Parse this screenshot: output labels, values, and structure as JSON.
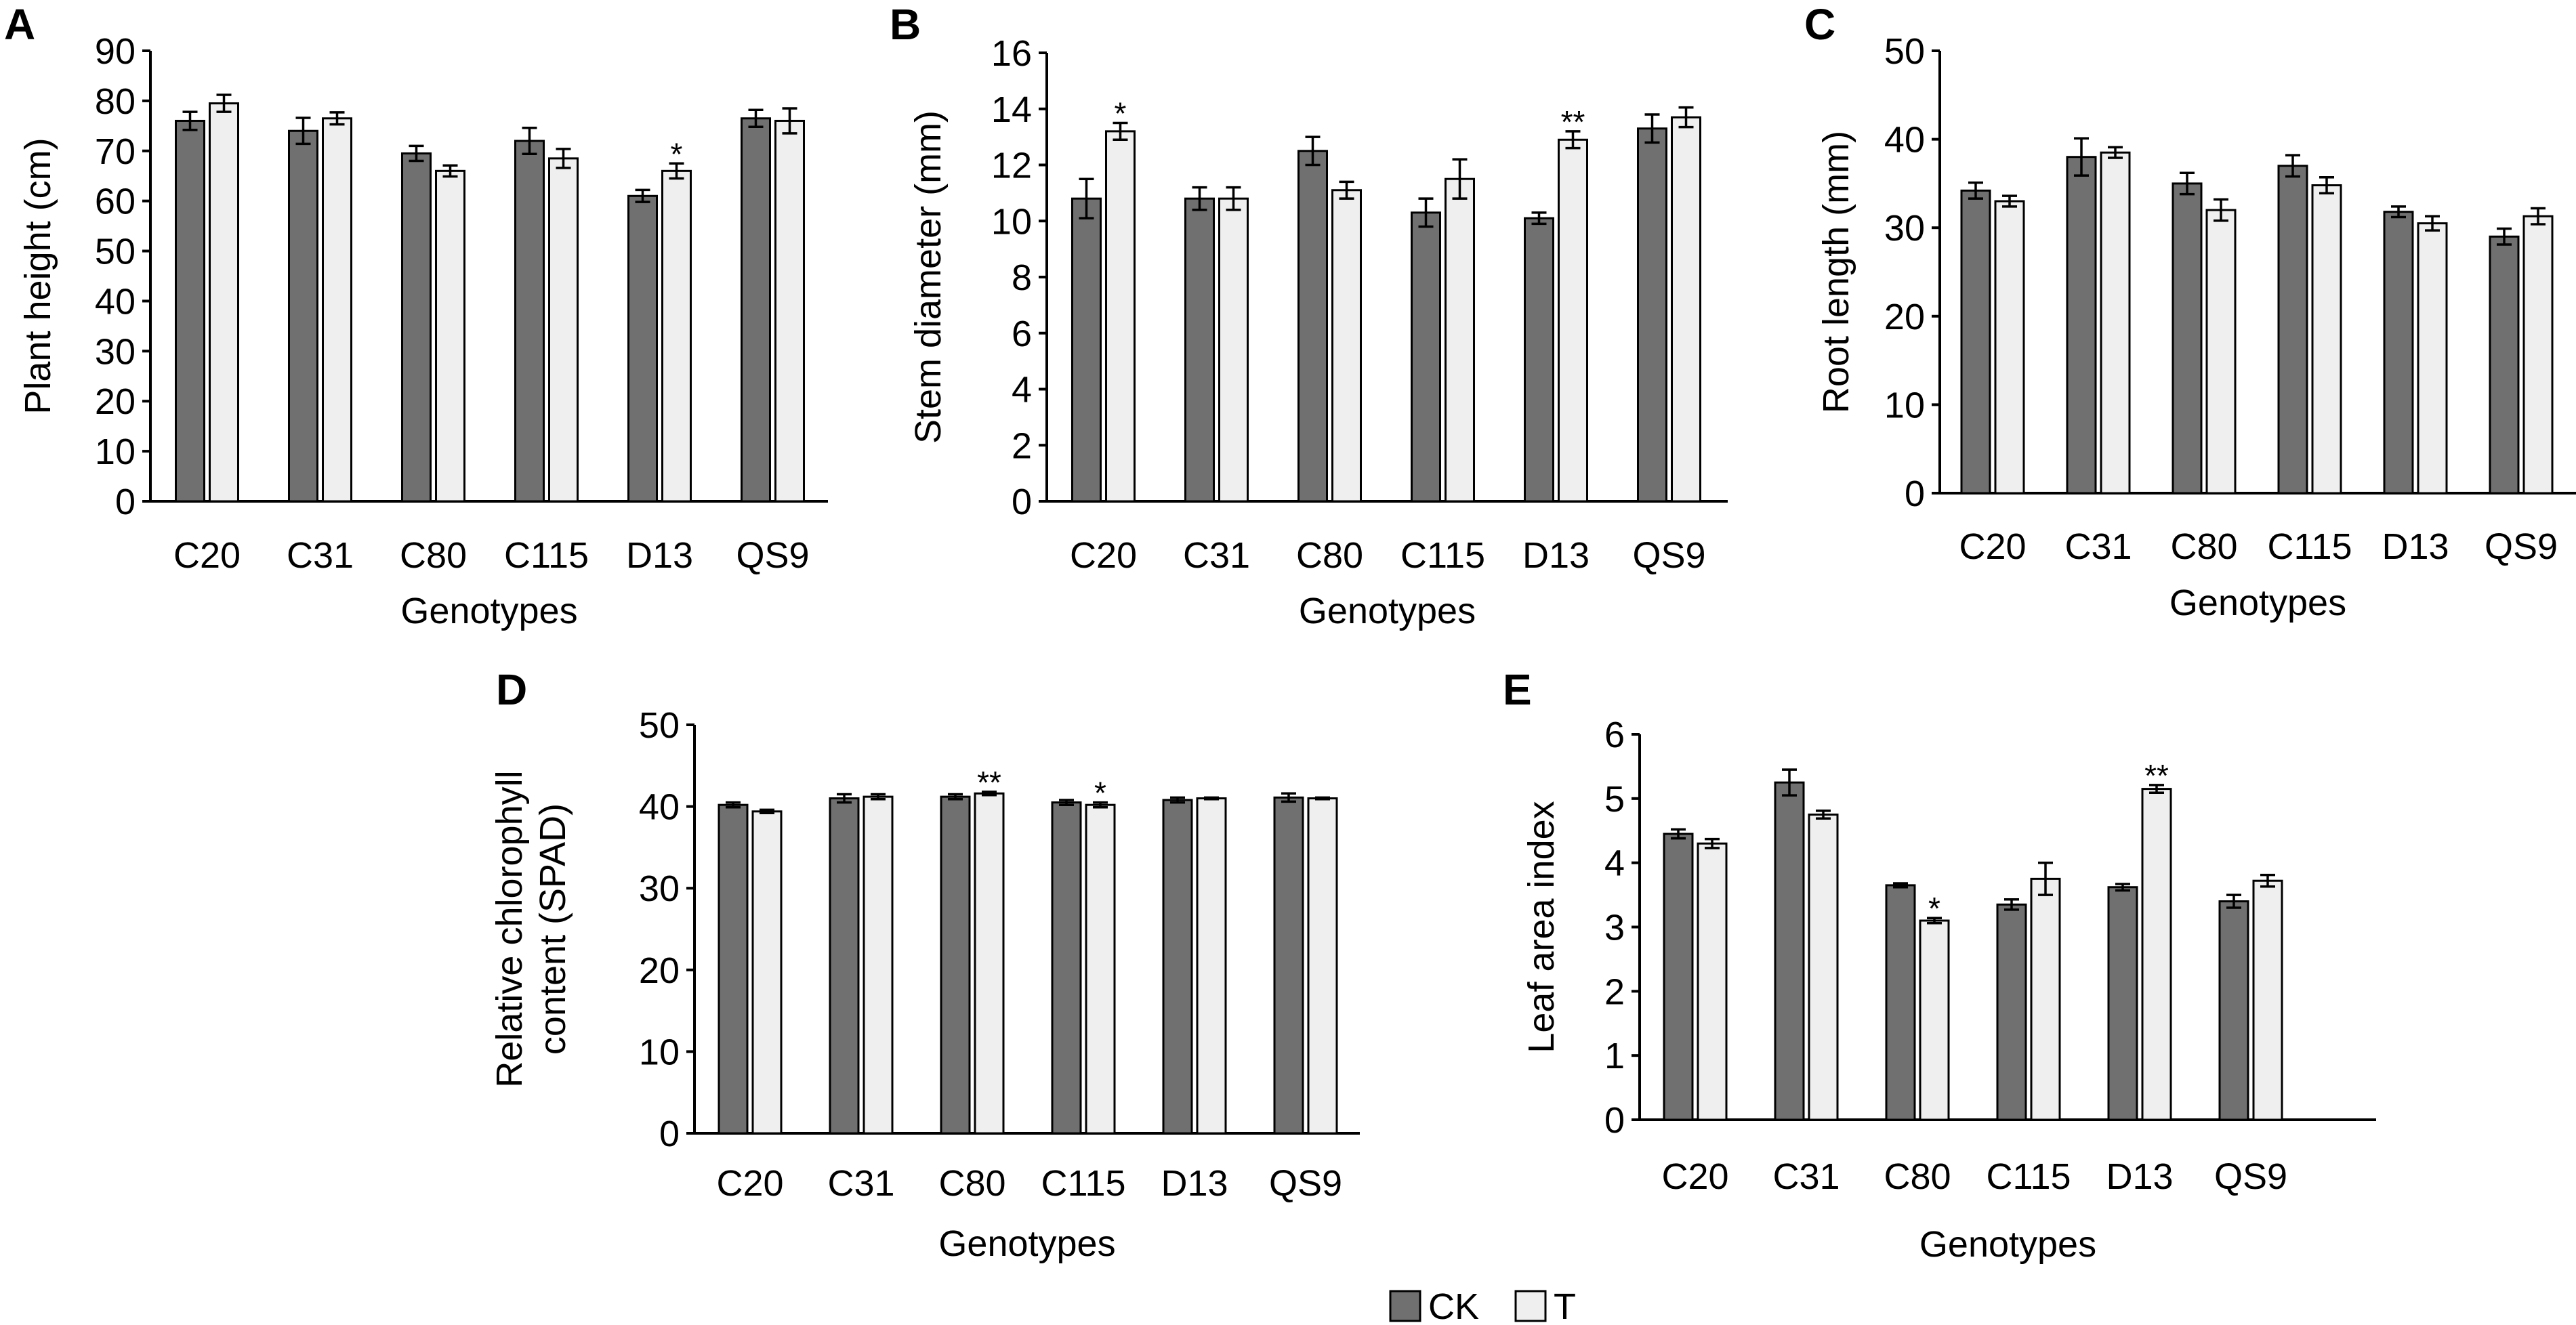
{
  "legend": {
    "ck_label": "CK",
    "t_label": "T",
    "ck_color": "#707070",
    "t_color": "#efefef"
  },
  "chart_data": [
    {
      "type": "bar",
      "panel": "A",
      "categories": [
        "C20",
        "C31",
        "C80",
        "C115",
        "D13",
        "QS9"
      ],
      "xlabel": "Genotypes",
      "ylabel": "Plant height (cm)",
      "ylim": [
        0,
        90
      ],
      "yticks": [
        0,
        10,
        20,
        30,
        40,
        50,
        60,
        70,
        80,
        90
      ],
      "series": [
        {
          "name": "CK",
          "values": [
            76,
            74,
            69.5,
            72,
            61,
            76.5
          ],
          "errors": [
            1.8,
            2.6,
            1.5,
            2.6,
            1.2,
            1.7
          ]
        },
        {
          "name": "T",
          "values": [
            79.5,
            76.5,
            66,
            68.5,
            66,
            76
          ],
          "errors": [
            1.7,
            1.2,
            1.1,
            1.9,
            1.5,
            2.5
          ]
        }
      ],
      "annotations": [
        {
          "category": "D13",
          "series": "T",
          "text": "*"
        }
      ]
    },
    {
      "type": "bar",
      "panel": "B",
      "categories": [
        "C20",
        "C31",
        "C80",
        "C115",
        "D13",
        "QS9"
      ],
      "xlabel": "Genotypes",
      "ylabel": "Stem diameter (mm)",
      "ylim": [
        0,
        16
      ],
      "yticks": [
        0,
        2,
        4,
        6,
        8,
        10,
        12,
        14,
        16
      ],
      "series": [
        {
          "name": "CK",
          "values": [
            10.8,
            10.8,
            12.5,
            10.3,
            10.1,
            13.3
          ],
          "errors": [
            0.7,
            0.4,
            0.5,
            0.5,
            0.2,
            0.5
          ]
        },
        {
          "name": "T",
          "values": [
            13.2,
            10.8,
            11.1,
            11.5,
            12.9,
            13.7
          ],
          "errors": [
            0.3,
            0.4,
            0.3,
            0.7,
            0.3,
            0.35
          ]
        }
      ],
      "annotations": [
        {
          "category": "C20",
          "series": "T",
          "text": "*"
        },
        {
          "category": "D13",
          "series": "T",
          "text": "**"
        }
      ]
    },
    {
      "type": "bar",
      "panel": "C",
      "categories": [
        "C20",
        "C31",
        "C80",
        "C115",
        "D13",
        "QS9"
      ],
      "xlabel": "Genotypes",
      "ylabel": "Root length (mm)",
      "ylim": [
        0,
        50
      ],
      "yticks": [
        0,
        10,
        20,
        30,
        40,
        50
      ],
      "series": [
        {
          "name": "CK",
          "values": [
            34.2,
            38,
            35,
            37,
            31.8,
            29
          ],
          "errors": [
            0.9,
            2.1,
            1.2,
            1.2,
            0.6,
            0.9
          ]
        },
        {
          "name": "T",
          "values": [
            33,
            38.5,
            32,
            34.8,
            30.5,
            31.3
          ],
          "errors": [
            0.6,
            0.6,
            1.2,
            0.9,
            0.8,
            0.9
          ]
        }
      ],
      "annotations": []
    },
    {
      "type": "bar",
      "panel": "D",
      "categories": [
        "C20",
        "C31",
        "C80",
        "C115",
        "D13",
        "QS9"
      ],
      "xlabel": "Genotypes",
      "ylabel_lines": [
        "Relative chlorophyll",
        "content (SPAD)"
      ],
      "ylim": [
        0,
        50
      ],
      "yticks": [
        0,
        10,
        20,
        30,
        40,
        50
      ],
      "series": [
        {
          "name": "CK",
          "values": [
            40.2,
            41,
            41.2,
            40.5,
            40.8,
            41.1
          ],
          "errors": [
            0.3,
            0.5,
            0.3,
            0.3,
            0.3,
            0.5
          ]
        },
        {
          "name": "T",
          "values": [
            39.4,
            41.2,
            41.6,
            40.2,
            41,
            41
          ],
          "errors": [
            0.2,
            0.3,
            0.2,
            0.3,
            0.1,
            0.1
          ]
        }
      ],
      "annotations": [
        {
          "category": "C80",
          "series": "T",
          "text": "**"
        },
        {
          "category": "C115",
          "series": "T",
          "text": "*"
        }
      ]
    },
    {
      "type": "bar",
      "panel": "E",
      "categories": [
        "C20",
        "C31",
        "C80",
        "C115",
        "D13",
        "QS9"
      ],
      "xlabel": "Genotypes",
      "ylabel": "Leaf area index",
      "ylim": [
        0,
        6
      ],
      "yticks": [
        0,
        1,
        2,
        3,
        4,
        5,
        6
      ],
      "series": [
        {
          "name": "CK",
          "values": [
            4.45,
            5.25,
            3.65,
            3.35,
            3.62,
            3.4
          ],
          "errors": [
            0.07,
            0.2,
            0.03,
            0.08,
            0.05,
            0.1
          ]
        },
        {
          "name": "T",
          "values": [
            4.3,
            4.75,
            3.1,
            3.75,
            5.15,
            3.72
          ],
          "errors": [
            0.07,
            0.06,
            0.04,
            0.25,
            0.06,
            0.09
          ]
        }
      ],
      "annotations": [
        {
          "category": "C80",
          "series": "T",
          "text": "*"
        },
        {
          "category": "D13",
          "series": "T",
          "text": "**"
        }
      ]
    }
  ]
}
